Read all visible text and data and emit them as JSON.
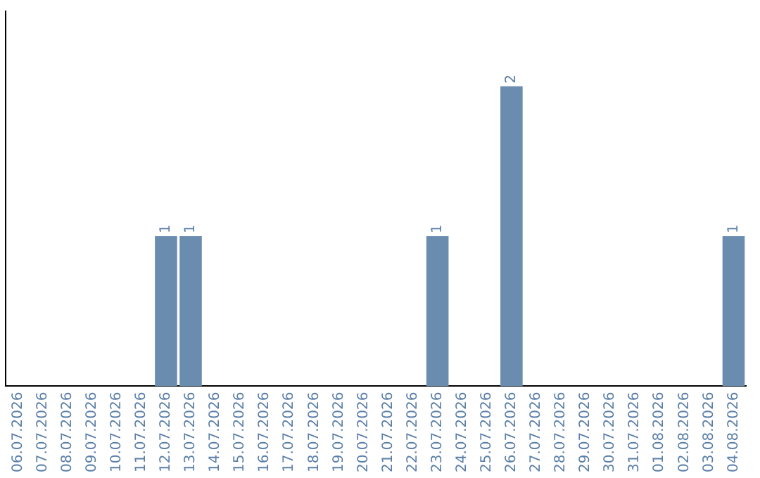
{
  "chart_data": {
    "type": "bar",
    "categories": [
      "06.07.2026",
      "07.07.2026",
      "08.07.2026",
      "09.07.2026",
      "10.07.2026",
      "11.07.2026",
      "12.07.2026",
      "13.07.2026",
      "14.07.2026",
      "15.07.2026",
      "16.07.2026",
      "17.07.2026",
      "18.07.2026",
      "19.07.2026",
      "20.07.2026",
      "21.07.2026",
      "22.07.2026",
      "23.07.2026",
      "24.07.2026",
      "25.07.2026",
      "26.07.2026",
      "27.07.2026",
      "28.07.2026",
      "29.07.2026",
      "30.07.2026",
      "31.07.2026",
      "01.08.2026",
      "02.08.2026",
      "03.08.2026",
      "04.08.2026"
    ],
    "values": [
      0,
      0,
      0,
      0,
      0,
      0,
      1,
      1,
      0,
      0,
      0,
      0,
      0,
      0,
      0,
      0,
      0,
      1,
      0,
      0,
      2,
      0,
      0,
      0,
      0,
      0,
      0,
      0,
      0,
      1
    ],
    "value_labels": [
      null,
      null,
      null,
      null,
      null,
      null,
      "1",
      "1",
      null,
      null,
      null,
      null,
      null,
      null,
      null,
      null,
      null,
      "1",
      null,
      null,
      "2",
      null,
      null,
      null,
      null,
      null,
      null,
      null,
      null,
      "1"
    ],
    "color": "#6a8cae",
    "tick_labels": "x",
    "grid": false,
    "legend": false
  }
}
